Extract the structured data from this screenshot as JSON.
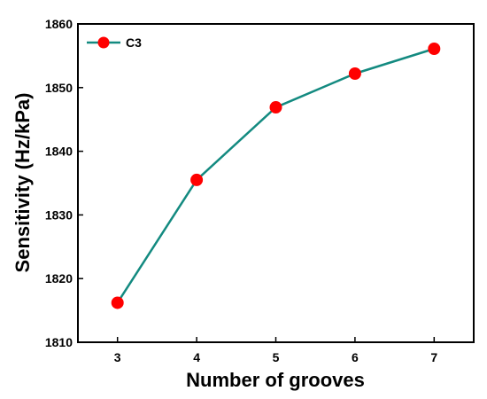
{
  "chart_data": {
    "type": "line",
    "x": [
      3,
      4,
      5,
      6,
      7
    ],
    "xticks": [
      "3",
      "4",
      "5",
      "6",
      "7"
    ],
    "xlim": [
      2.5,
      7.5
    ],
    "yticks": [
      "1810",
      "1820",
      "1830",
      "1840",
      "1850",
      "1860"
    ],
    "ylim": [
      1810,
      1860
    ],
    "xlabel": "Number of grooves",
    "ylabel": "Sensitivity (Hz/kPa)",
    "grid": false,
    "legend_position": "top-left",
    "series": [
      {
        "name": "C3",
        "values": [
          1816.2,
          1835.5,
          1846.9,
          1852.2,
          1856.1
        ],
        "line_color": "#138a80",
        "marker_color": "#ff0000"
      }
    ]
  }
}
